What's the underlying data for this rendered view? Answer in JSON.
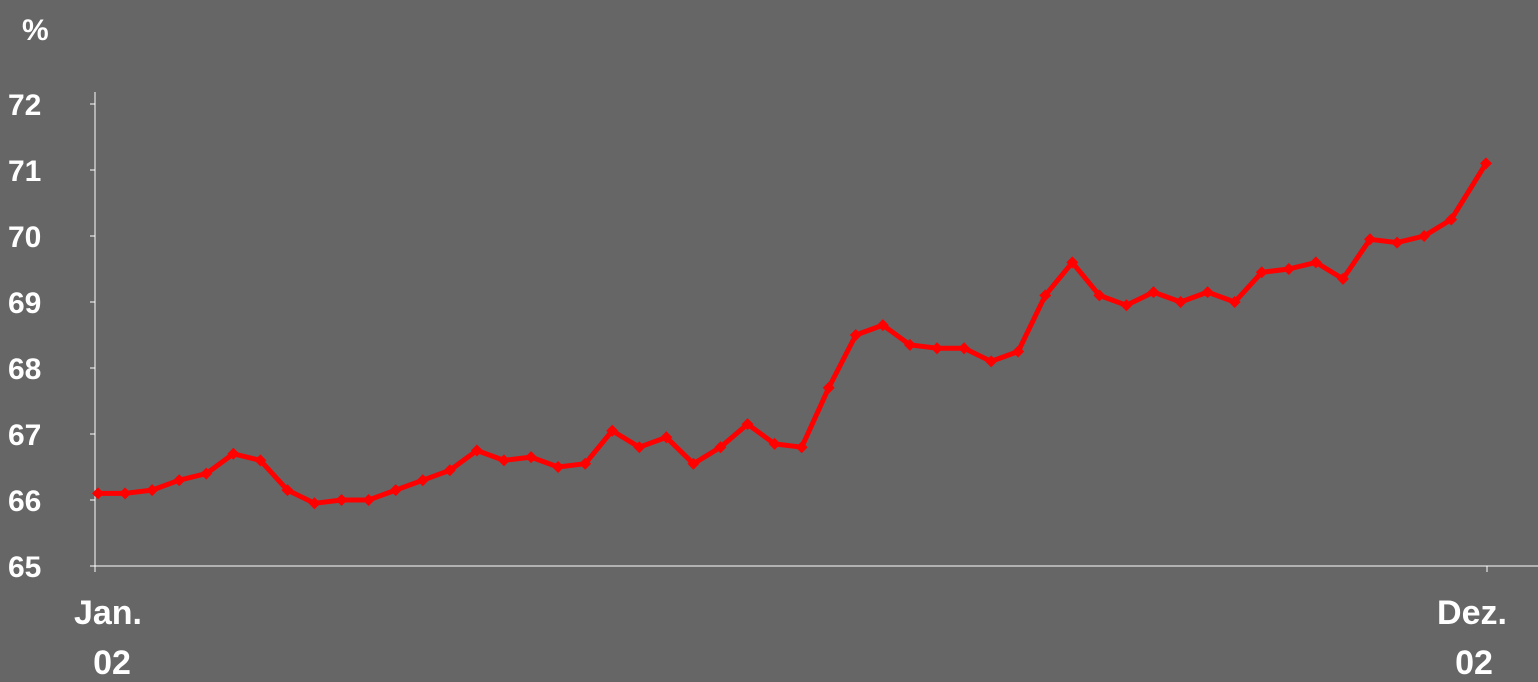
{
  "chart_data": {
    "type": "line",
    "title": "",
    "ylabel": "%",
    "xlabel": "",
    "ylim": [
      65,
      72
    ],
    "yticks": [
      65,
      66,
      67,
      68,
      69,
      70,
      71,
      72
    ],
    "grid": false,
    "x_tick_labels": [
      {
        "line1": "Jan.",
        "line2": "02"
      },
      {
        "line1": "Dez.",
        "line2": "02"
      }
    ],
    "x": [
      "2002-01-02",
      "2002-01-09",
      "2002-01-16",
      "2002-01-23",
      "2002-01-30",
      "2002-02-06",
      "2002-02-13",
      "2002-02-20",
      "2002-02-27",
      "2002-03-06",
      "2002-03-13",
      "2002-03-20",
      "2002-03-27",
      "2002-04-03",
      "2002-04-10",
      "2002-04-17",
      "2002-04-24",
      "2002-05-01",
      "2002-05-08",
      "2002-05-15",
      "2002-05-22",
      "2002-05-29",
      "2002-06-05",
      "2002-06-12",
      "2002-06-19",
      "2002-06-26",
      "2002-07-03",
      "2002-07-10",
      "2002-07-17",
      "2002-07-24",
      "2002-07-31",
      "2002-08-07",
      "2002-08-14",
      "2002-08-21",
      "2002-08-28",
      "2002-09-04",
      "2002-09-11",
      "2002-09-18",
      "2002-09-25",
      "2002-10-02",
      "2002-10-09",
      "2002-10-16",
      "2002-10-23",
      "2002-10-30",
      "2002-11-06",
      "2002-11-13",
      "2002-11-20",
      "2002-11-27",
      "2002-12-04",
      "2002-12-11",
      "2002-12-18",
      "2002-12-27"
    ],
    "series": [
      {
        "color": "#ff0000",
        "marker": "diamond",
        "values": [
          66.1,
          66.1,
          66.15,
          66.3,
          66.4,
          66.7,
          66.6,
          66.15,
          65.95,
          66.0,
          66.0,
          66.15,
          66.3,
          66.45,
          66.75,
          66.6,
          66.65,
          66.5,
          66.55,
          67.05,
          66.8,
          66.95,
          66.55,
          66.8,
          67.15,
          66.85,
          66.8,
          67.7,
          68.5,
          68.65,
          68.35,
          68.3,
          68.3,
          68.1,
          68.25,
          69.1,
          69.6,
          69.1,
          68.95,
          69.15,
          69.0,
          69.15,
          69.0,
          69.45,
          69.5,
          69.6,
          69.35,
          69.95,
          69.9,
          70.0,
          70.25,
          71.1
        ]
      }
    ]
  }
}
